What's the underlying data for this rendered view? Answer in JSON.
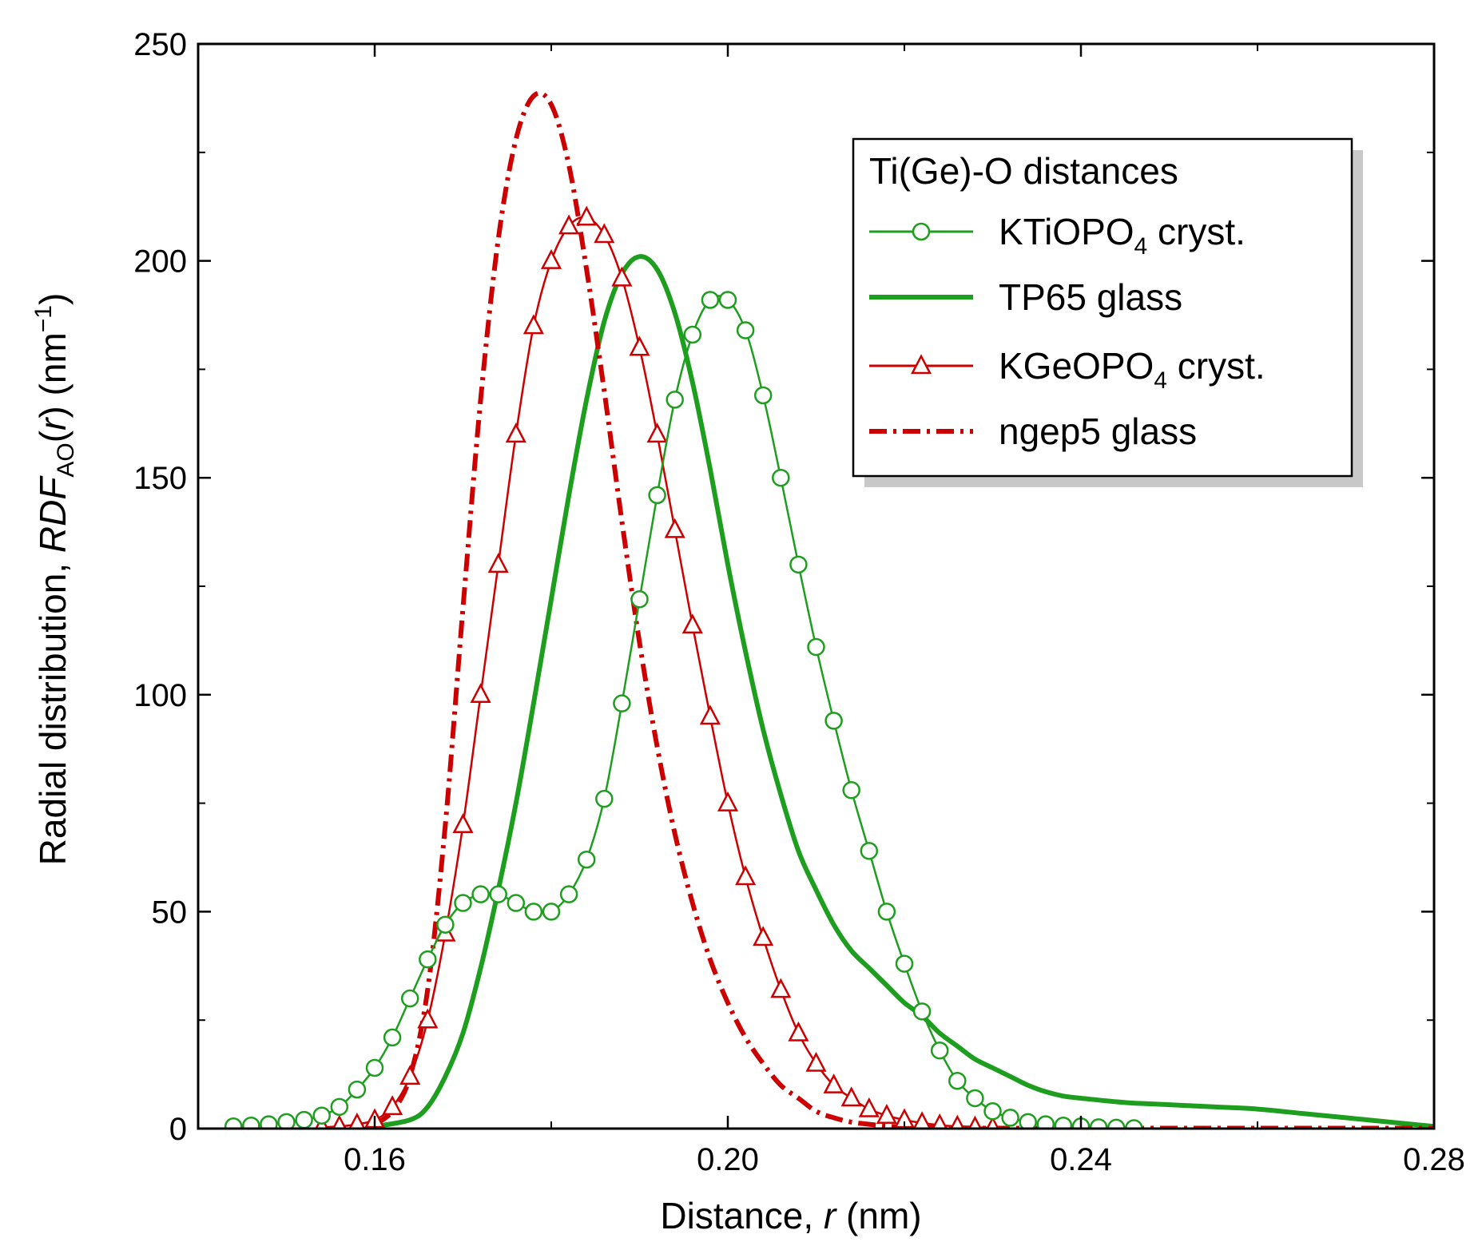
{
  "chart_data": {
    "type": "line",
    "xlabel": {
      "main": "Distance, ",
      "italic": "r",
      "unit": " (nm)"
    },
    "ylabel": {
      "pre": "Radial distribution, ",
      "italic": "RDF",
      "sub": "AO",
      "open": "(",
      "italic2": "r",
      "close": ")",
      "unit": " (nm",
      "sup": "−1",
      "end": ")"
    },
    "xlim": [
      0.14,
      0.28
    ],
    "ylim": [
      0,
      250
    ],
    "xticks": [
      0.16,
      0.2,
      0.24,
      0.28
    ],
    "xtick_labels": [
      "0.16",
      "0.20",
      "0.24",
      "0.28"
    ],
    "yticks": [
      0,
      50,
      100,
      150,
      200,
      250
    ],
    "ytick_labels": [
      "0",
      "50",
      "100",
      "150",
      "200",
      "250"
    ],
    "grid": false,
    "legend_position": "top-right",
    "legend_title": "Ti(Ge)-O distances",
    "colors": {
      "green": "#1e9e1e",
      "red": "#cc0000",
      "shadow": "#c8c8c8"
    },
    "series": [
      {
        "name": "KTiOPO",
        "name_sub": "4",
        "name_suffix": " cryst.",
        "style": "line-circles",
        "color": "#1e9e1e",
        "x": [
          0.144,
          0.146,
          0.148,
          0.15,
          0.152,
          0.154,
          0.156,
          0.158,
          0.16,
          0.162,
          0.164,
          0.166,
          0.168,
          0.17,
          0.172,
          0.174,
          0.176,
          0.178,
          0.18,
          0.182,
          0.184,
          0.186,
          0.188,
          0.19,
          0.192,
          0.194,
          0.196,
          0.198,
          0.2,
          0.202,
          0.204,
          0.206,
          0.208,
          0.21,
          0.212,
          0.214,
          0.216,
          0.218,
          0.22,
          0.222,
          0.224,
          0.226,
          0.228,
          0.23,
          0.232,
          0.234,
          0.236,
          0.238,
          0.24,
          0.242,
          0.244,
          0.246
        ],
        "y": [
          0.5,
          0.7,
          1,
          1.5,
          2,
          3,
          5,
          9,
          14,
          21,
          30,
          39,
          47,
          52,
          54,
          54,
          52,
          50,
          50,
          54,
          62,
          76,
          98,
          122,
          146,
          168,
          183,
          191,
          191,
          184,
          169,
          150,
          130,
          111,
          94,
          78,
          64,
          50,
          38,
          27,
          18,
          11,
          7,
          4,
          2.5,
          1.5,
          1,
          0.7,
          0.5,
          0.3,
          0.2,
          0.1
        ]
      },
      {
        "name": "TP65 glass",
        "style": "solid-thick",
        "color": "#1e9e1e",
        "x": [
          0.16,
          0.164,
          0.166,
          0.168,
          0.17,
          0.172,
          0.174,
          0.176,
          0.178,
          0.18,
          0.182,
          0.184,
          0.186,
          0.188,
          0.19,
          0.192,
          0.194,
          0.196,
          0.198,
          0.2,
          0.202,
          0.204,
          0.206,
          0.208,
          0.21,
          0.212,
          0.214,
          0.216,
          0.218,
          0.22,
          0.222,
          0.224,
          0.226,
          0.228,
          0.23,
          0.232,
          0.234,
          0.236,
          0.238,
          0.24,
          0.245,
          0.25,
          0.255,
          0.26,
          0.265,
          0.27,
          0.275,
          0.28
        ],
        "y": [
          0.5,
          2,
          5,
          12,
          22,
          37,
          55,
          75,
          98,
          122,
          146,
          168,
          186,
          197,
          201,
          198,
          188,
          172,
          152,
          130,
          110,
          92,
          77,
          64,
          55,
          47,
          41,
          37,
          33,
          29,
          26,
          22,
          19,
          16,
          14,
          12,
          10,
          8.5,
          7.5,
          7,
          6,
          5.5,
          5,
          4.5,
          3.5,
          2.5,
          1.5,
          0.5
        ]
      },
      {
        "name": "KGeOPO",
        "name_sub": "4",
        "name_suffix": " cryst.",
        "style": "line-triangles",
        "color": "#cc0000",
        "x": [
          0.154,
          0.156,
          0.158,
          0.16,
          0.162,
          0.164,
          0.166,
          0.168,
          0.17,
          0.172,
          0.174,
          0.176,
          0.178,
          0.18,
          0.182,
          0.184,
          0.186,
          0.188,
          0.19,
          0.192,
          0.194,
          0.196,
          0.198,
          0.2,
          0.202,
          0.204,
          0.206,
          0.208,
          0.21,
          0.212,
          0.214,
          0.216,
          0.218,
          0.22,
          0.222,
          0.224,
          0.226,
          0.228,
          0.23
        ],
        "y": [
          0.3,
          0.5,
          1,
          2,
          5,
          12,
          25,
          45,
          70,
          100,
          130,
          160,
          185,
          200,
          208,
          210,
          206,
          196,
          180,
          160,
          138,
          116,
          95,
          75,
          58,
          44,
          32,
          22,
          15,
          10,
          7,
          4.5,
          3,
          2,
          1.3,
          0.8,
          0.5,
          0.3,
          0.2
        ]
      },
      {
        "name": "ngep5 glass",
        "style": "dash-dot",
        "color": "#cc0000",
        "x": [
          0.16,
          0.162,
          0.164,
          0.166,
          0.168,
          0.17,
          0.172,
          0.174,
          0.176,
          0.178,
          0.18,
          0.182,
          0.184,
          0.186,
          0.188,
          0.19,
          0.192,
          0.194,
          0.196,
          0.198,
          0.2,
          0.202,
          0.204,
          0.206,
          0.208,
          0.21,
          0.212,
          0.214,
          0.216,
          0.218,
          0.22,
          0.225,
          0.23,
          0.24,
          0.25,
          0.26,
          0.27,
          0.28
        ],
        "y": [
          1,
          4,
          12,
          32,
          70,
          120,
          168,
          205,
          228,
          238,
          236,
          222,
          198,
          170,
          140,
          112,
          88,
          68,
          52,
          39,
          29,
          21,
          15,
          10,
          7,
          4,
          2.5,
          1.5,
          1,
          0.6,
          0.4,
          0.2,
          0.1,
          0.1,
          0.1,
          0.1,
          0.1,
          0.1
        ]
      }
    ]
  }
}
